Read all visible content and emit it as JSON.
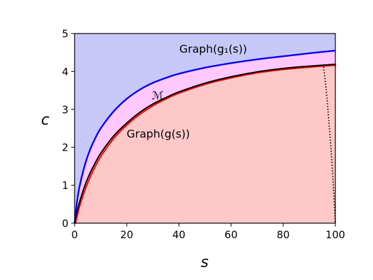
{
  "chart_data": {
    "type": "area",
    "xlabel": "s",
    "ylabel": "c",
    "xlim": [
      0,
      100
    ],
    "ylim": [
      0,
      5
    ],
    "grid": false,
    "legend": "none",
    "x_ticks": [
      "0",
      "20",
      "40",
      "60",
      "80",
      "100"
    ],
    "y_ticks": [
      "0",
      "1",
      "2",
      "3",
      "4",
      "5"
    ],
    "annotations": {
      "g1_label": "Graph(g₁(s))",
      "g_label": "Graph(g(s))",
      "m_label": "ℳ"
    },
    "series": [
      {
        "key": "g1",
        "color": "#0000ff",
        "x": [
          0,
          1,
          2,
          4,
          6,
          8,
          10,
          15,
          20,
          25,
          30,
          35,
          40,
          50,
          60,
          70,
          80,
          90,
          100
        ],
        "y": [
          0,
          0.6,
          1.0,
          1.55,
          1.95,
          2.25,
          2.5,
          2.95,
          3.28,
          3.52,
          3.7,
          3.83,
          3.94,
          4.1,
          4.22,
          4.32,
          4.4,
          4.48,
          4.55
        ]
      },
      {
        "key": "g_red",
        "color": "#ff0000",
        "x": [
          0,
          1,
          2,
          4,
          6,
          8,
          10,
          15,
          20,
          25,
          30,
          35,
          40,
          50,
          60,
          70,
          80,
          90,
          100
        ],
        "y": [
          0,
          0.3,
          0.55,
          0.95,
          1.28,
          1.56,
          1.8,
          2.27,
          2.62,
          2.9,
          3.12,
          3.3,
          3.45,
          3.68,
          3.85,
          3.98,
          4.07,
          4.13,
          4.18
        ]
      },
      {
        "key": "g",
        "color": "#000000",
        "x": [
          0,
          1,
          2,
          4,
          6,
          8,
          10,
          15,
          20,
          25,
          30,
          35,
          40,
          50,
          60,
          70,
          80,
          90,
          100
        ],
        "y": [
          0,
          0.32,
          0.58,
          1.0,
          1.33,
          1.6,
          1.84,
          2.3,
          2.64,
          2.92,
          3.14,
          3.31,
          3.46,
          3.69,
          3.86,
          3.99,
          4.08,
          4.14,
          4.19
        ]
      },
      {
        "key": "dotted",
        "color": "#000000",
        "x": [
          95.5,
          96.5,
          97.5,
          98.5,
          99.3,
          100
        ],
        "y": [
          4.12,
          3.5,
          2.7,
          1.8,
          0.9,
          0
        ]
      }
    ],
    "regions": {
      "upper_color": "#c8c8f8",
      "middle_color": "#ffc8ff",
      "lower_color": "#ffc8c8"
    }
  }
}
